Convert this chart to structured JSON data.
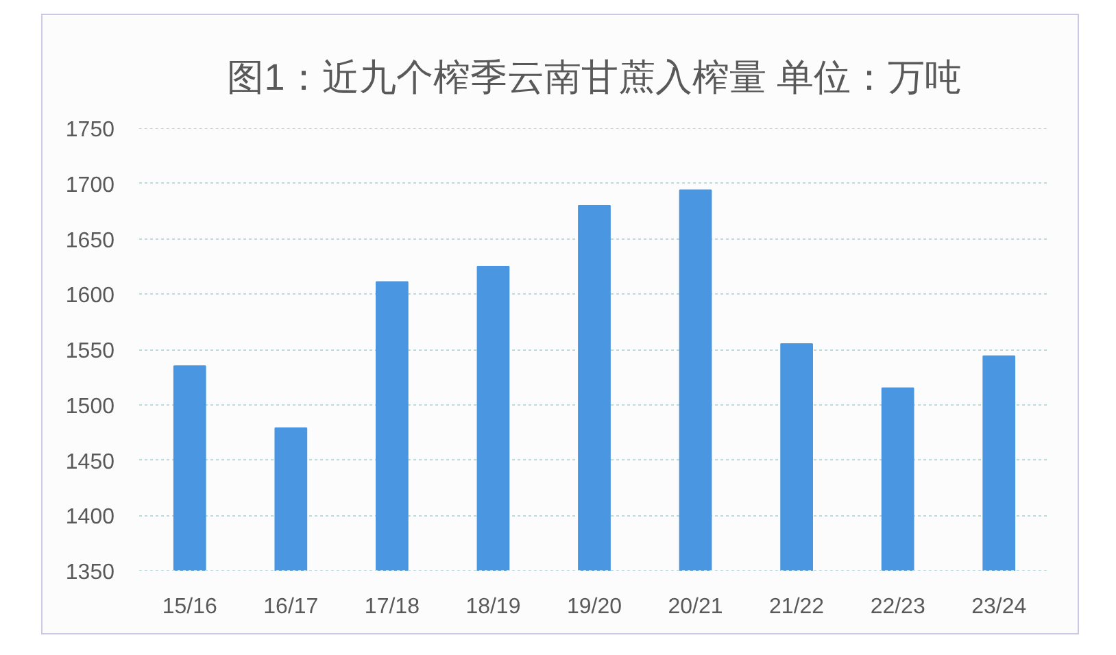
{
  "chart_data": {
    "type": "bar",
    "title": "图1：近九个榨季云南甘蔗入榨量 单位：万吨",
    "categories": [
      "15/16",
      "16/17",
      "17/18",
      "18/19",
      "19/20",
      "20/21",
      "21/22",
      "22/23",
      "23/24"
    ],
    "values": [
      1535,
      1479,
      1611,
      1625,
      1680,
      1694,
      1555,
      1515,
      1544
    ],
    "color": "#4a96e0",
    "ylim": [
      1350,
      1750
    ],
    "yticks": [
      1350,
      1400,
      1450,
      1500,
      1550,
      1600,
      1650,
      1700,
      1750
    ],
    "grid": "y"
  }
}
